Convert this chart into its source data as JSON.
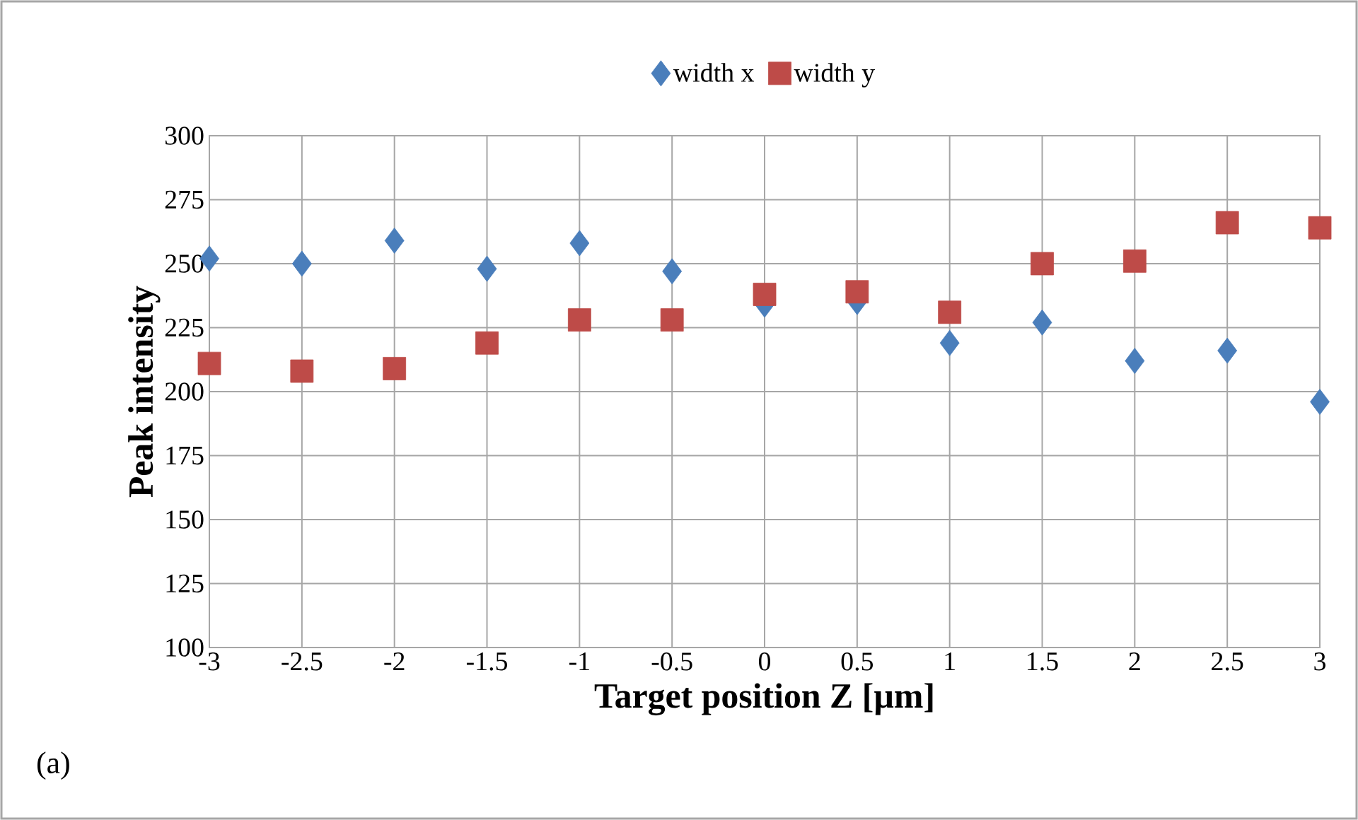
{
  "chart_data": {
    "type": "scatter",
    "xlabel": "Target position Z [µm]",
    "ylabel": "Peak intensity",
    "x": [
      -3,
      -2.5,
      -2,
      -1.5,
      -1,
      -0.5,
      0,
      0.5,
      1,
      1.5,
      2,
      2.5,
      3
    ],
    "series": [
      {
        "name": "width x",
        "color": "#4a7ebb",
        "marker": "diamond",
        "values": [
          252,
          250,
          259,
          248,
          258,
          247,
          234,
          235,
          219,
          227,
          212,
          216,
          196
        ]
      },
      {
        "name": "width y",
        "color": "#be4b48",
        "marker": "square",
        "values": [
          211,
          208,
          209,
          219,
          228,
          228,
          238,
          239,
          231,
          250,
          251,
          266,
          264
        ]
      }
    ],
    "xlim": [
      -3,
      3
    ],
    "xticks": [
      -3,
      -2.5,
      -2,
      -1.5,
      -1,
      -0.5,
      0,
      0.5,
      1,
      1.5,
      2,
      2.5,
      3
    ],
    "ylim": [
      100,
      300
    ],
    "yticks": [
      100,
      125,
      150,
      175,
      200,
      225,
      250,
      275,
      300
    ],
    "grid": true,
    "legend": "top",
    "annotations": [
      "(a)"
    ]
  }
}
